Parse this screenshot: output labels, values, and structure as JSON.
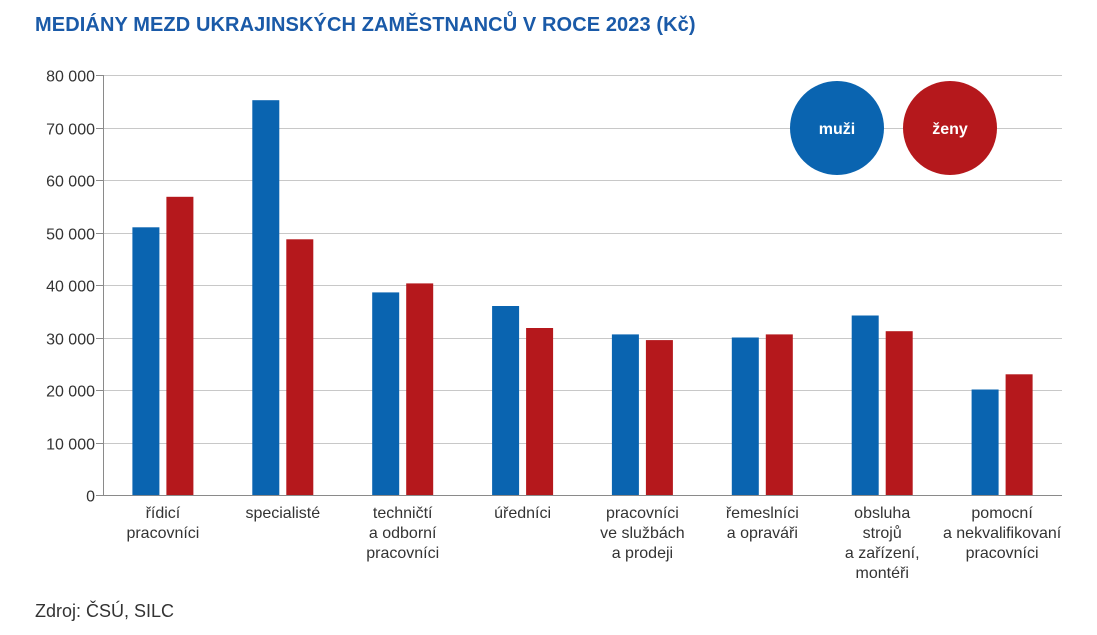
{
  "chart_data": {
    "type": "bar",
    "title": "MEDIÁNY MEZD UKRAJINSKÝCH ZAMĚSTNANCŮ V ROCE 2023 (Kč)",
    "source": "Zdroj: ČSÚ, SILC",
    "categories": [
      [
        "řídicí",
        "pracovníci"
      ],
      [
        "specialisté"
      ],
      [
        "techničtí",
        "a odborní",
        "pracovníci"
      ],
      [
        "úředníci"
      ],
      [
        "pracovníci",
        "ve službách",
        "a prodeji"
      ],
      [
        "řemeslníci",
        "a opraváři"
      ],
      [
        "obsluha",
        "strojů",
        "a zařízení,",
        "montéři"
      ],
      [
        "pomocní",
        "a nekvalifikovaní",
        "pracovníci"
      ]
    ],
    "series": [
      {
        "name": "muži",
        "color": "#0a64b0",
        "values": [
          51000,
          75200,
          38600,
          36000,
          30600,
          30000,
          34200,
          20100
        ]
      },
      {
        "name": "ženy",
        "color": "#b5181c",
        "values": [
          56800,
          48700,
          40300,
          31800,
          29500,
          30600,
          31200,
          23000
        ]
      }
    ],
    "ylim": [
      0,
      80000
    ],
    "yticks": [
      0,
      10000,
      20000,
      30000,
      40000,
      50000,
      60000,
      70000,
      80000
    ],
    "ytick_labels": [
      "0",
      "10 000",
      "20 000",
      "30 000",
      "40 000",
      "50 000",
      "60 000",
      "70 000",
      "80 000"
    ],
    "grid": true,
    "legend_position": "top-right"
  }
}
